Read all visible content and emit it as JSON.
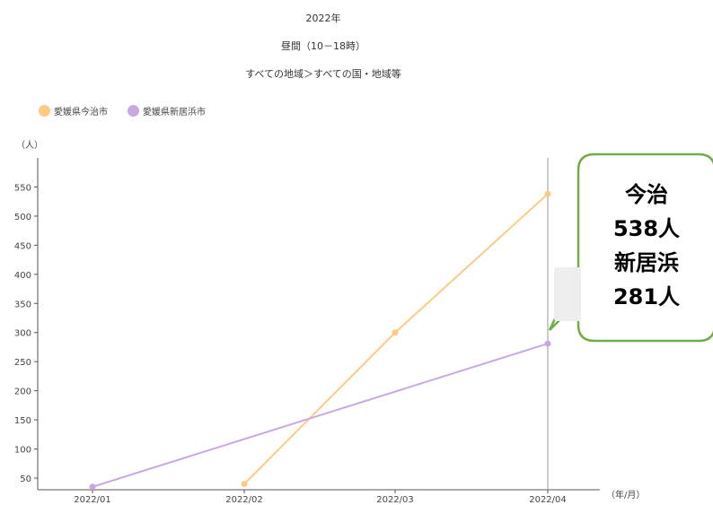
{
  "header": {
    "title": "2022年",
    "subtitle": "昼間（10－18時）",
    "filter": "すべての地域＞すべての国・地域等"
  },
  "legend": [
    {
      "name": "愛媛県今治市",
      "color": "#FDCB86"
    },
    {
      "name": "愛媛県新居浜市",
      "color": "#C9A8E2"
    }
  ],
  "callout": {
    "lines": [
      "今治",
      "538人",
      "新居浜",
      "281人"
    ],
    "border_color": "#70AD47"
  },
  "chart_data": {
    "type": "line",
    "categories": [
      "2022/01",
      "2022/02",
      "2022/03",
      "2022/04"
    ],
    "series": [
      {
        "name": "愛媛県今治市",
        "color": "#FDCB86",
        "values": [
          null,
          40,
          300,
          538
        ]
      },
      {
        "name": "愛媛県新居浜市",
        "color": "#C9A8E2",
        "values": [
          35,
          null,
          null,
          281
        ]
      }
    ],
    "ylabel": "（人）",
    "xlabel": "（年/月）",
    "ylim": [
      30,
      600
    ],
    "yticks": [
      50,
      100,
      150,
      200,
      250,
      300,
      350,
      400,
      450,
      500,
      550
    ],
    "highlight_category": "2022/04",
    "grid": false,
    "legend_position": "top-left"
  }
}
